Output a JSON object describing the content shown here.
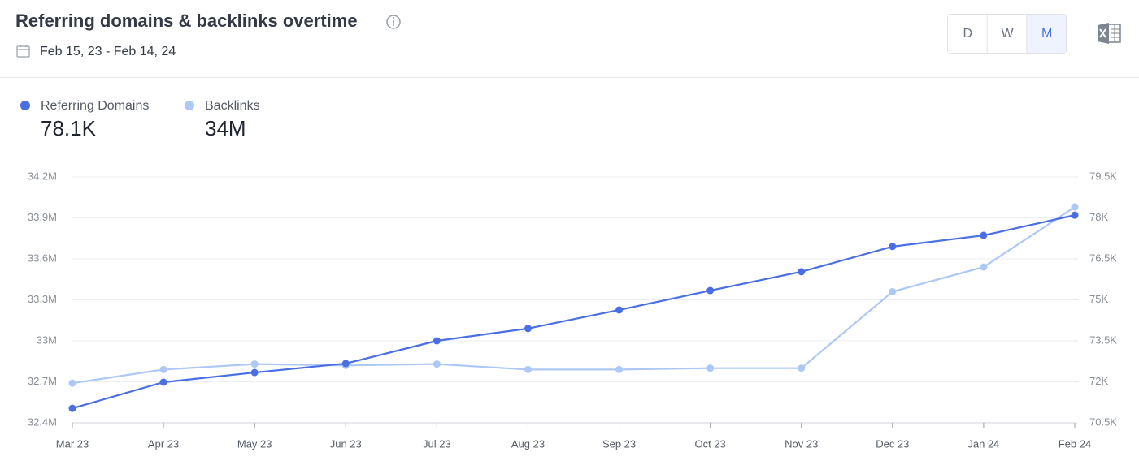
{
  "header": {
    "title": "Referring domains & backlinks overtime",
    "date_range": "Feb 15, 23 - Feb 14, 24",
    "periods": [
      "D",
      "W",
      "M"
    ],
    "active_period": 2
  },
  "chart_data": {
    "type": "line",
    "categories": [
      "Mar 23",
      "Apr 23",
      "May 23",
      "Jun 23",
      "Jul 23",
      "Aug 23",
      "Sep 23",
      "Oct 23",
      "Nov 23",
      "Dec 23",
      "Jan 24",
      "Feb 24"
    ],
    "legend_totals": [
      "78.1K",
      "34M"
    ],
    "series": [
      {
        "name": "Referring Domains",
        "color": "#4a6fe3",
        "axis": "y2",
        "values": [
          71030,
          71985,
          72340,
          72670,
          73500,
          73950,
          74630,
          75340,
          76030,
          76950,
          77360,
          78100
        ]
      },
      {
        "name": "Backlinks",
        "color": "#adc8f5",
        "axis": "y",
        "values": [
          32690000,
          32790000,
          32830000,
          32820000,
          32830000,
          32790000,
          32790000,
          32800000,
          32800000,
          33360000,
          33540000,
          33980000
        ]
      }
    ],
    "ylim": [
      32400000,
      34200000
    ],
    "yticks": [
      {
        "value": 32400000,
        "label": "32.4M"
      },
      {
        "value": 32700000,
        "label": "32.7M"
      },
      {
        "value": 33000000,
        "label": "33M"
      },
      {
        "value": 33300000,
        "label": "33.3M"
      },
      {
        "value": 33600000,
        "label": "33.6M"
      },
      {
        "value": 33900000,
        "label": "33.9M"
      },
      {
        "value": 34200000,
        "label": "34.2M"
      }
    ],
    "y2lim": [
      70500,
      79500
    ],
    "y2ticks": [
      {
        "value": 70500,
        "label": "70.5K"
      },
      {
        "value": 72000,
        "label": "72K"
      },
      {
        "value": 73500,
        "label": "73.5K"
      },
      {
        "value": 75000,
        "label": "75K"
      },
      {
        "value": 76500,
        "label": "76.5K"
      },
      {
        "value": 78000,
        "label": "78K"
      },
      {
        "value": 79500,
        "label": "79.5K"
      }
    ],
    "grid": true
  }
}
